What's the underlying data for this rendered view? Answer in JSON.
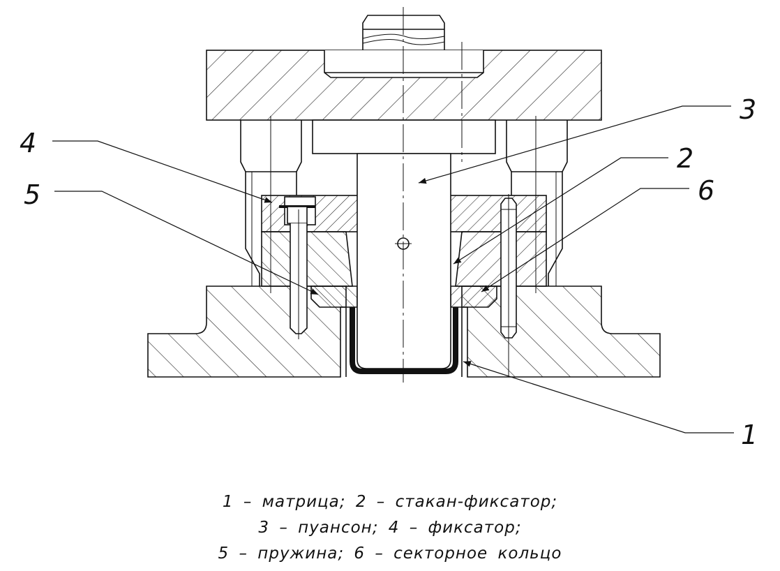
{
  "callouts": {
    "c1": "1",
    "c2": "2",
    "c3": "3",
    "c4": "4",
    "c5": "5",
    "c6": "6"
  },
  "legend": {
    "line1": "1 – матрица; 2 – стакан-фиксатор;",
    "line2": "3 – пуансон; 4 – фиксатор;",
    "line3": "5 – пружина; 6 – секторное кольцо"
  }
}
